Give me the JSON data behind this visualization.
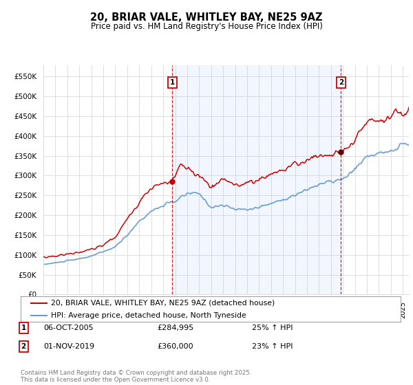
{
  "title": "20, BRIAR VALE, WHITLEY BAY, NE25 9AZ",
  "subtitle": "Price paid vs. HM Land Registry's House Price Index (HPI)",
  "ylabel_ticks": [
    "£0",
    "£50K",
    "£100K",
    "£150K",
    "£200K",
    "£250K",
    "£300K",
    "£350K",
    "£400K",
    "£450K",
    "£500K",
    "£550K"
  ],
  "ytick_values": [
    0,
    50000,
    100000,
    150000,
    200000,
    250000,
    300000,
    350000,
    400000,
    450000,
    500000,
    550000
  ],
  "ylim": [
    0,
    580000
  ],
  "red_color": "#cc0000",
  "blue_color": "#6699cc",
  "blue_fill_color": "#ddeeff",
  "background_color": "#ffffff",
  "grid_color": "#dddddd",
  "sale1_x": 2005.75,
  "sale1_y": 284995,
  "sale2_x": 2019.83,
  "sale2_y": 360000,
  "legend_line1": "20, BRIAR VALE, WHITLEY BAY, NE25 9AZ (detached house)",
  "legend_line2": "HPI: Average price, detached house, North Tyneside",
  "sale1_date": "06-OCT-2005",
  "sale1_price": "£284,995",
  "sale1_hpi": "25% ↑ HPI",
  "sale2_date": "01-NOV-2019",
  "sale2_price": "£360,000",
  "sale2_hpi": "23% ↑ HPI",
  "footer": "Contains HM Land Registry data © Crown copyright and database right 2025.\nThis data is licensed under the Open Government Licence v3.0.",
  "xmin": 1995.0,
  "xmax": 2025.5
}
